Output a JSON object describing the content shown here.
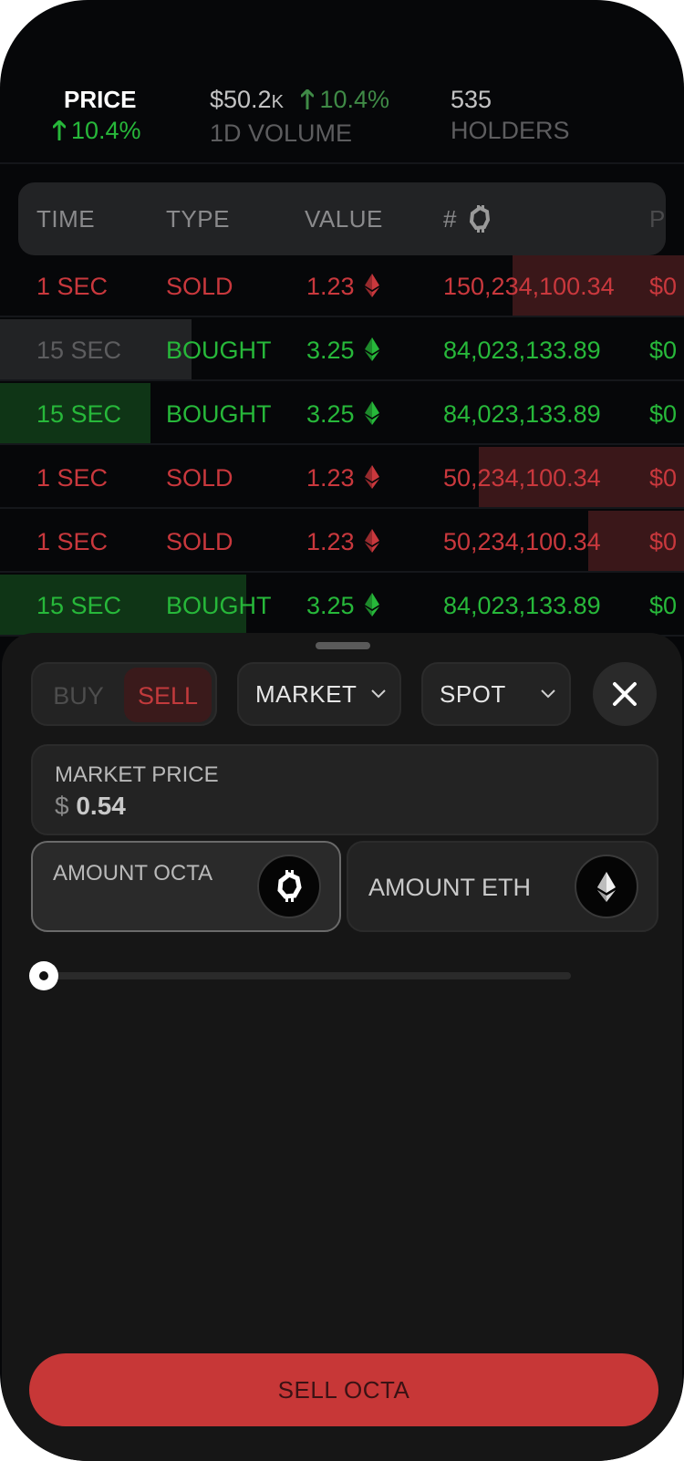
{
  "stats": {
    "price": {
      "label": "PRICE",
      "change": "10.4%"
    },
    "volume": {
      "value": "$50.2",
      "suffix": "K",
      "change": "10.4%",
      "label": "1D VOLUME"
    },
    "holders": {
      "value": "535",
      "label": "HOLDERS"
    }
  },
  "table": {
    "headers": {
      "time": "TIME",
      "type": "TYPE",
      "value": "VALUE",
      "hash": "#",
      "price": "P"
    },
    "rows": [
      {
        "time": "1 SEC",
        "type": "SOLD",
        "value": "1.23",
        "amount": "150,234,100.34",
        "price": "$0",
        "side": "sold",
        "fill": 0.25
      },
      {
        "time": "15 SEC",
        "type": "BOUGHT",
        "value": "3.25",
        "amount": "84,023,133.89",
        "price": "$0",
        "side": "bought",
        "fill": 0.28,
        "faded": true
      },
      {
        "time": "15 SEC",
        "type": "BOUGHT",
        "value": "3.25",
        "amount": "84,023,133.89",
        "price": "$0",
        "side": "bought",
        "fill": 0.22
      },
      {
        "time": "1 SEC",
        "type": "SOLD",
        "value": "1.23",
        "amount": "50,234,100.34",
        "price": "$0",
        "side": "sold",
        "fill": 0.3
      },
      {
        "time": "1 SEC",
        "type": "SOLD",
        "value": "1.23",
        "amount": "50,234,100.34",
        "price": "$0",
        "side": "sold",
        "fill": 0.14
      },
      {
        "time": "15 SEC",
        "type": "BOUGHT",
        "value": "3.25",
        "amount": "84,023,133.89",
        "price": "$0",
        "side": "bought",
        "fill": 0.36
      }
    ]
  },
  "order": {
    "buy_label": "BUY",
    "sell_label": "SELL",
    "order_type": "MARKET",
    "market_kind": "SPOT",
    "market_price_label": "MARKET PRICE",
    "currency_symbol": "$",
    "market_price_value": "0.54",
    "amount_octa_label": "AMOUNT OCTA",
    "amount_eth_label": "AMOUNT ETH",
    "slider_value": 0,
    "submit_label": "SELL OCTA"
  },
  "colors": {
    "green": "#27b83a",
    "red": "#c9383d",
    "sell_button": "#c73737",
    "background": "#060709",
    "sheet": "#161616"
  },
  "icons": [
    "up-arrow-icon",
    "octa-coin-icon",
    "eth-icon",
    "chevron-down-icon",
    "close-icon"
  ]
}
